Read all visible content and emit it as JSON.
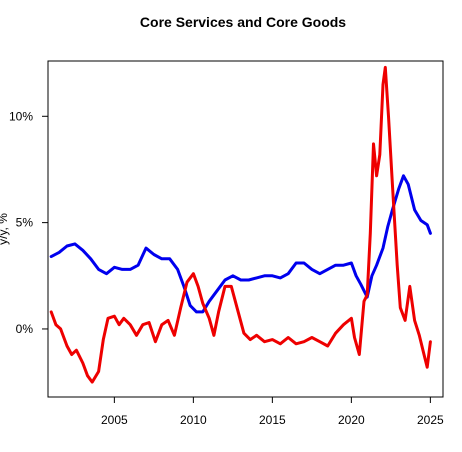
{
  "chart_data": {
    "type": "line",
    "title": "Core Services and Core Goods",
    "xlabel": "",
    "ylabel": "y/y, %",
    "xlim": [
      2000.8,
      2025.8
    ],
    "ylim": [
      -3.2,
      12.6
    ],
    "x_ticks": [
      2005,
      2010,
      2015,
      2020,
      2025
    ],
    "y_ticks": [
      {
        "value": 0,
        "label": "0%"
      },
      {
        "value": 5,
        "label": "5%"
      },
      {
        "value": 10,
        "label": "10%"
      }
    ],
    "grid": false,
    "legend": "none",
    "series": [
      {
        "color": "#0000ee",
        "x": [
          2001.0,
          2001.5,
          2002.0,
          2002.5,
          2003.0,
          2003.5,
          2004.0,
          2004.5,
          2005.0,
          2005.5,
          2006.0,
          2006.5,
          2007.0,
          2007.5,
          2008.0,
          2008.5,
          2009.0,
          2009.4,
          2009.8,
          2010.2,
          2010.6,
          2011.0,
          2011.5,
          2012.0,
          2012.5,
          2013.0,
          2013.5,
          2014.0,
          2014.5,
          2015.0,
          2015.5,
          2016.0,
          2016.5,
          2017.0,
          2017.5,
          2018.0,
          2018.5,
          2019.0,
          2019.5,
          2020.0,
          2020.3,
          2020.6,
          2021.0,
          2021.3,
          2021.6,
          2022.0,
          2022.3,
          2022.6,
          2023.0,
          2023.3,
          2023.6,
          2024.0,
          2024.4,
          2024.8,
          2025.0
        ],
        "y": [
          3.4,
          3.6,
          3.9,
          4.0,
          3.7,
          3.3,
          2.8,
          2.6,
          2.9,
          2.8,
          2.8,
          3.0,
          3.8,
          3.5,
          3.3,
          3.3,
          2.8,
          2.0,
          1.1,
          0.8,
          0.8,
          1.3,
          1.8,
          2.3,
          2.5,
          2.3,
          2.3,
          2.4,
          2.5,
          2.5,
          2.4,
          2.6,
          3.1,
          3.1,
          2.8,
          2.6,
          2.8,
          3.0,
          3.0,
          3.1,
          2.5,
          2.1,
          1.5,
          2.5,
          3.0,
          3.8,
          4.8,
          5.6,
          6.6,
          7.2,
          6.8,
          5.6,
          5.1,
          4.9,
          4.5
        ]
      },
      {
        "color": "#ee0000",
        "x": [
          2001.0,
          2001.3,
          2001.6,
          2002.0,
          2002.3,
          2002.6,
          2003.0,
          2003.3,
          2003.6,
          2004.0,
          2004.3,
          2004.6,
          2005.0,
          2005.3,
          2005.6,
          2006.0,
          2006.4,
          2006.8,
          2007.2,
          2007.6,
          2008.0,
          2008.4,
          2008.8,
          2009.2,
          2009.6,
          2010.0,
          2010.3,
          2010.6,
          2011.0,
          2011.3,
          2011.6,
          2012.0,
          2012.4,
          2012.8,
          2013.2,
          2013.6,
          2014.0,
          2014.5,
          2015.0,
          2015.5,
          2016.0,
          2016.5,
          2017.0,
          2017.5,
          2018.0,
          2018.5,
          2019.0,
          2019.5,
          2020.0,
          2020.2,
          2020.5,
          2020.8,
          2021.0,
          2021.2,
          2021.4,
          2021.6,
          2021.8,
          2022.0,
          2022.15,
          2022.35,
          2022.6,
          2022.9,
          2023.1,
          2023.4,
          2023.7,
          2024.0,
          2024.3,
          2024.6,
          2024.8,
          2025.0
        ],
        "y": [
          0.8,
          0.2,
          0.0,
          -0.8,
          -1.2,
          -1.0,
          -1.6,
          -2.2,
          -2.5,
          -2.0,
          -0.5,
          0.5,
          0.6,
          0.2,
          0.5,
          0.2,
          -0.3,
          0.2,
          0.3,
          -0.6,
          0.2,
          0.4,
          -0.3,
          1.0,
          2.2,
          2.6,
          2.0,
          1.2,
          0.5,
          -0.3,
          0.8,
          2.0,
          2.0,
          0.9,
          -0.2,
          -0.5,
          -0.3,
          -0.6,
          -0.5,
          -0.7,
          -0.4,
          -0.7,
          -0.6,
          -0.4,
          -0.6,
          -0.8,
          -0.2,
          0.2,
          0.5,
          -0.4,
          -1.2,
          1.3,
          1.6,
          4.5,
          8.7,
          7.2,
          8.2,
          11.5,
          12.3,
          10.0,
          6.8,
          3.0,
          1.0,
          0.4,
          2.0,
          0.4,
          -0.3,
          -1.2,
          -1.8,
          -0.6
        ]
      }
    ]
  }
}
